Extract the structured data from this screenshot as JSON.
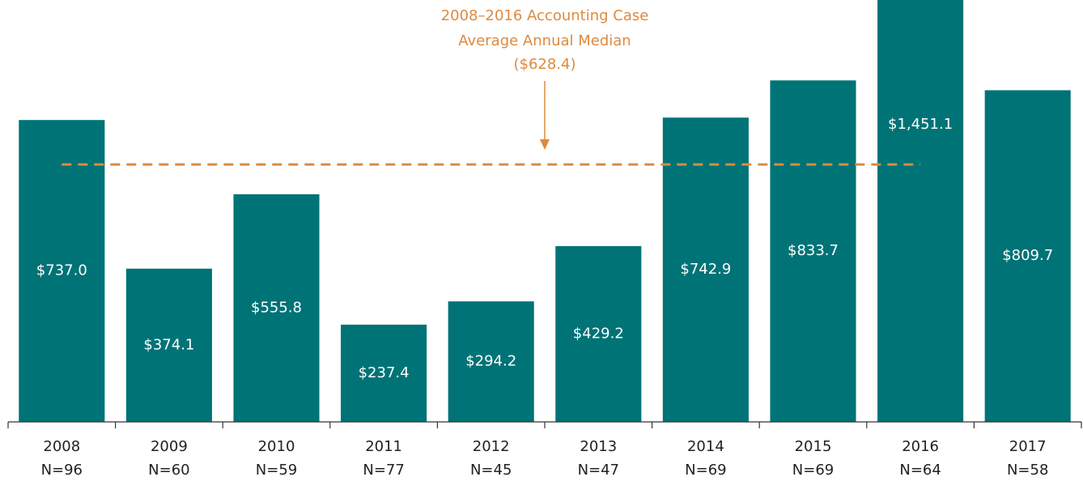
{
  "chart_data": {
    "type": "bar",
    "categories": [
      "2008",
      "2009",
      "2010",
      "2011",
      "2012",
      "2013",
      "2014",
      "2015",
      "2016",
      "2017"
    ],
    "sample_sizes": [
      "N=96",
      "N=60",
      "N=59",
      "N=77",
      "N=45",
      "N=47",
      "N=69",
      "N=69",
      "N=64",
      "N=58"
    ],
    "values": [
      737.0,
      374.1,
      555.8,
      237.4,
      294.2,
      429.2,
      742.9,
      833.7,
      1451.1,
      809.7
    ],
    "value_labels": [
      "$737.0",
      "$374.1",
      "$555.8",
      "$237.4",
      "$294.2",
      "$429.2",
      "$742.9",
      "$833.7",
      "$1,451.1",
      "$809.7"
    ],
    "color": "#007377",
    "ylim": [
      0,
      1030
    ],
    "reference_line": {
      "value": 628.4,
      "span": [
        "2008",
        "2016"
      ],
      "color": "#dd8a3e",
      "label_lines": [
        "2008–2016 Accounting Case",
        "Average Annual Median",
        "($628.4)"
      ]
    }
  }
}
